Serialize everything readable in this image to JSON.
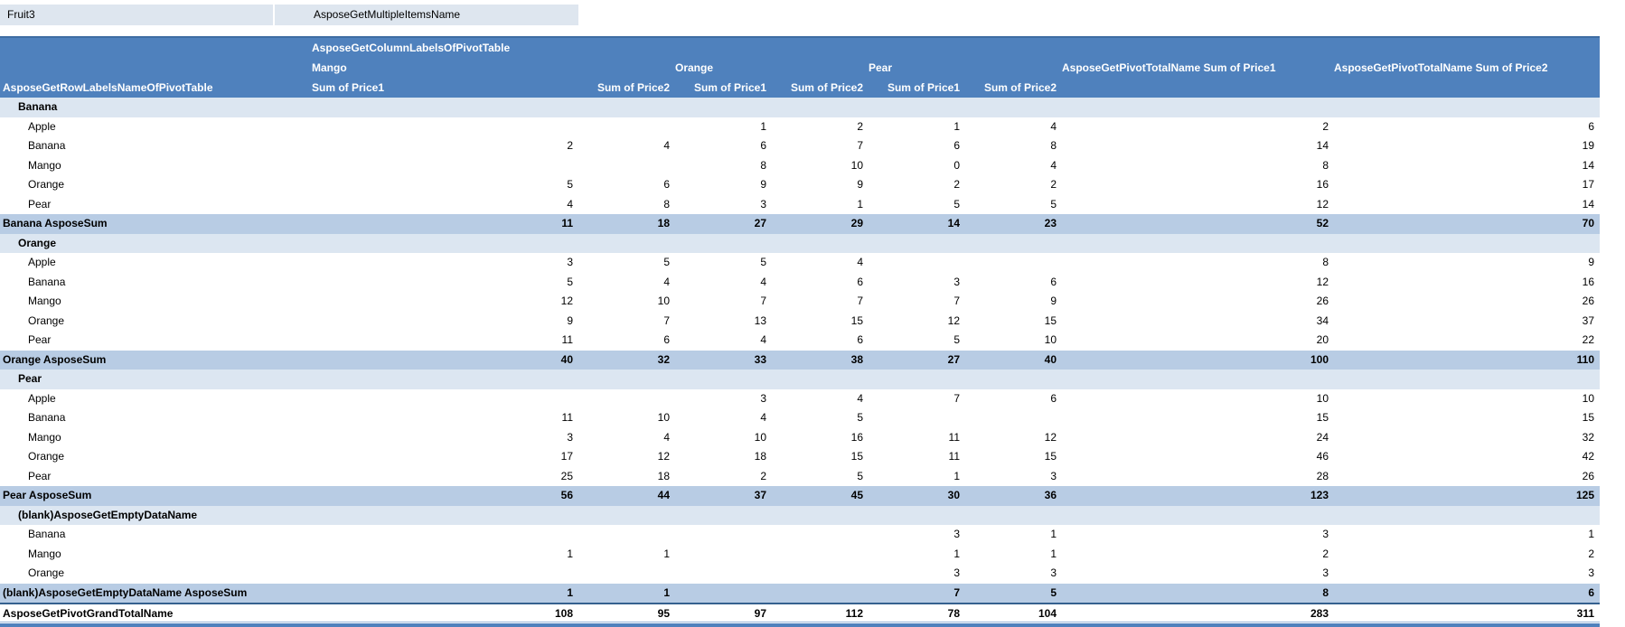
{
  "filter_row": {
    "field_label": "Fruit3",
    "value_label": "AsposeGetMultipleItemsName"
  },
  "pivot": {
    "column_labels_title": "AsposeGetColumnLabelsOfPivotTable",
    "row_labels_title": "AsposeGetRowLabelsNameOfPivotTable",
    "column_groups": [
      {
        "name": "Mango"
      },
      {
        "name": "Orange"
      },
      {
        "name": "Pear"
      }
    ],
    "measure_labels": [
      "Sum of Price1",
      "Sum of Price2"
    ],
    "total_headers": [
      "AsposeGetPivotTotalName Sum of Price1",
      "AsposeGetPivotTotalName Sum of Price2"
    ],
    "colors": {
      "header_bg": "#4F81BD",
      "group_row_bg": "#DCE6F1",
      "subtotal_row_bg": "#B8CCE4",
      "filter_row_bg": "#DEE6EF",
      "grand_total_border": "#35618F",
      "bottom_bar": "#4F81BD"
    },
    "groups": [
      {
        "name": "Banana",
        "items": [
          {
            "label": "Apple",
            "values": [
              "",
              "",
              1,
              2,
              1,
              4,
              2,
              6
            ]
          },
          {
            "label": "Banana",
            "values": [
              2,
              4,
              6,
              7,
              6,
              8,
              14,
              19
            ]
          },
          {
            "label": "Mango",
            "values": [
              "",
              "",
              8,
              10,
              0,
              4,
              8,
              14
            ]
          },
          {
            "label": "Orange",
            "values": [
              5,
              6,
              9,
              9,
              2,
              2,
              16,
              17
            ]
          },
          {
            "label": "Pear",
            "values": [
              4,
              8,
              3,
              1,
              5,
              5,
              12,
              14
            ]
          }
        ],
        "subtotal": {
          "label": "Banana AsposeSum",
          "values": [
            11,
            18,
            27,
            29,
            14,
            23,
            52,
            70
          ]
        }
      },
      {
        "name": "Orange",
        "items": [
          {
            "label": "Apple",
            "values": [
              3,
              5,
              5,
              4,
              "",
              "",
              8,
              9
            ]
          },
          {
            "label": "Banana",
            "values": [
              5,
              4,
              4,
              6,
              3,
              6,
              12,
              16
            ]
          },
          {
            "label": "Mango",
            "values": [
              12,
              10,
              7,
              7,
              7,
              9,
              26,
              26
            ]
          },
          {
            "label": "Orange",
            "values": [
              9,
              7,
              13,
              15,
              12,
              15,
              34,
              37
            ]
          },
          {
            "label": "Pear",
            "values": [
              11,
              6,
              4,
              6,
              5,
              10,
              20,
              22
            ]
          }
        ],
        "subtotal": {
          "label": "Orange AsposeSum",
          "values": [
            40,
            32,
            33,
            38,
            27,
            40,
            100,
            110
          ]
        }
      },
      {
        "name": "Pear",
        "items": [
          {
            "label": "Apple",
            "values": [
              "",
              "",
              3,
              4,
              7,
              6,
              10,
              10
            ]
          },
          {
            "label": "Banana",
            "values": [
              11,
              10,
              4,
              5,
              "",
              "",
              15,
              15
            ]
          },
          {
            "label": "Mango",
            "values": [
              3,
              4,
              10,
              16,
              11,
              12,
              24,
              32
            ]
          },
          {
            "label": "Orange",
            "values": [
              17,
              12,
              18,
              15,
              11,
              15,
              46,
              42
            ]
          },
          {
            "label": "Pear",
            "values": [
              25,
              18,
              2,
              5,
              1,
              3,
              28,
              26
            ]
          }
        ],
        "subtotal": {
          "label": "Pear AsposeSum",
          "values": [
            56,
            44,
            37,
            45,
            30,
            36,
            123,
            125
          ]
        }
      },
      {
        "name": "(blank)AsposeGetEmptyDataName",
        "items": [
          {
            "label": "Banana",
            "values": [
              "",
              "",
              "",
              "",
              3,
              1,
              3,
              1
            ]
          },
          {
            "label": "Mango",
            "values": [
              1,
              1,
              "",
              "",
              1,
              1,
              2,
              2
            ]
          },
          {
            "label": "Orange",
            "values": [
              "",
              "",
              "",
              "",
              3,
              3,
              3,
              3
            ]
          }
        ],
        "subtotal": {
          "label": "(blank)AsposeGetEmptyDataName AsposeSum",
          "values": [
            1,
            1,
            "",
            "",
            7,
            5,
            8,
            6
          ]
        }
      }
    ],
    "grand_total": {
      "label": "AsposeGetPivotGrandTotalName",
      "values": [
        108,
        95,
        97,
        112,
        78,
        104,
        283,
        311
      ]
    }
  }
}
